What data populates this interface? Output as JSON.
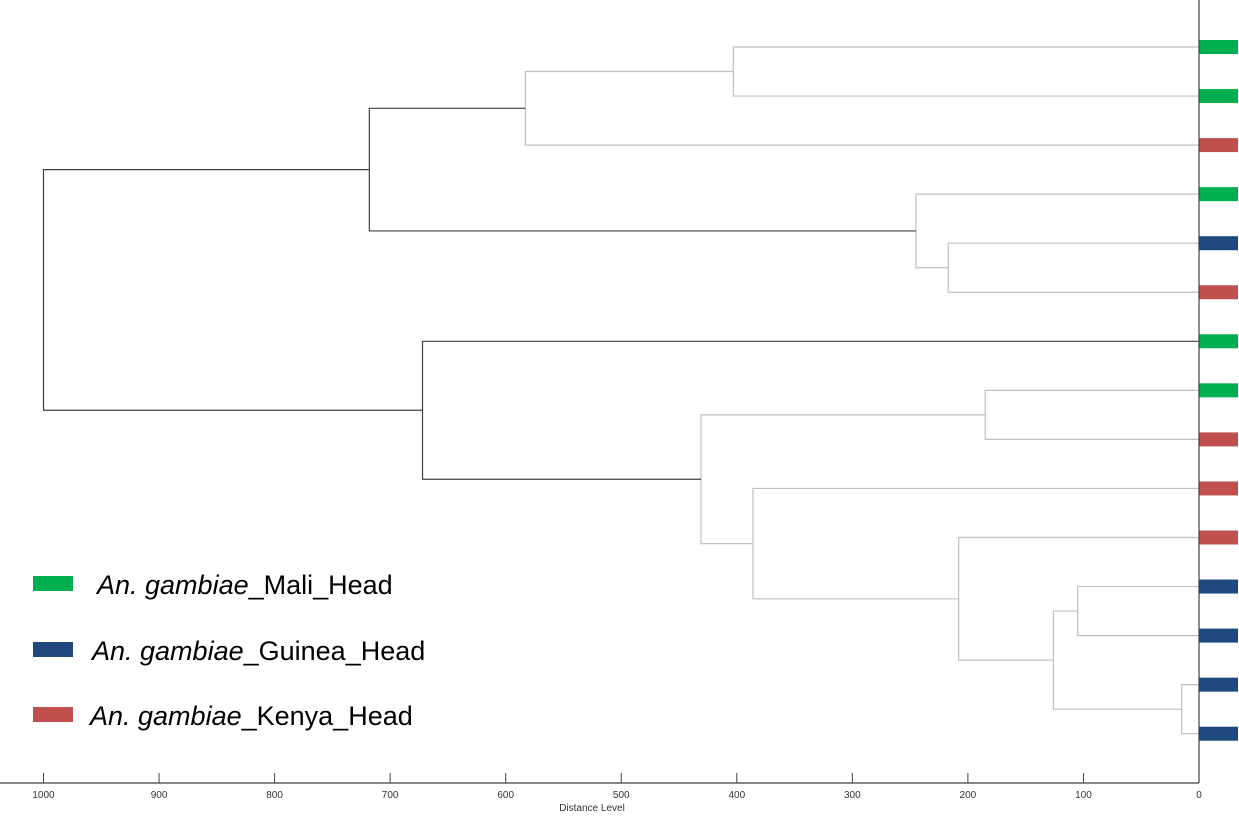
{
  "chart_data": {
    "type": "dendrogram",
    "xlabel": "Distance Level",
    "xlim": [
      1000,
      0
    ],
    "x_ticks": [
      1000,
      900,
      800,
      700,
      600,
      500,
      400,
      300,
      200,
      100,
      0
    ],
    "leaf_groups": [
      "Mali",
      "Mali",
      "Kenya",
      "Mali",
      "Guinea",
      "Kenya",
      "Mali",
      "Mali",
      "Kenya",
      "Kenya",
      "Kenya",
      "Guinea",
      "Guinea",
      "Guinea",
      "Guinea"
    ],
    "merges": [
      {
        "a": 0,
        "b": 1,
        "height": 403,
        "id": "n1"
      },
      {
        "a": "n1",
        "b": 2,
        "height": 583,
        "id": "n2"
      },
      {
        "a": 4,
        "b": 5,
        "height": 217,
        "id": "n3"
      },
      {
        "a": 3,
        "b": "n3",
        "height": 245,
        "id": "n4"
      },
      {
        "a": "n2",
        "b": "n4",
        "height": 718,
        "id": "n5"
      },
      {
        "a": 7,
        "b": 8,
        "height": 185,
        "id": "n6"
      },
      {
        "a": 11,
        "b": 12,
        "height": 105,
        "id": "n7"
      },
      {
        "a": 13,
        "b": 14,
        "height": 15,
        "id": "n8"
      },
      {
        "a": "n7",
        "b": "n8",
        "height": 126,
        "id": "n9"
      },
      {
        "a": 10,
        "b": "n9",
        "height": 208,
        "id": "n10"
      },
      {
        "a": 9,
        "b": "n10",
        "height": 386,
        "id": "n11"
      },
      {
        "a": "n6",
        "b": "n11",
        "height": 431,
        "id": "n12"
      },
      {
        "a": 6,
        "b": "n12",
        "height": 672,
        "id": "n13"
      },
      {
        "a": "n5",
        "b": "n13",
        "height": 1000,
        "id": "n14"
      }
    ],
    "highlighted_links": [
      "n14",
      "n5",
      "n13"
    ],
    "legend": [
      {
        "group": "Mali",
        "species": "An. gambiae",
        "suffix": "_Mali_Head",
        "color": "#00b050"
      },
      {
        "group": "Guinea",
        "species": "An. gambiae",
        "suffix": "_Guinea_Head",
        "color": "#1f497d"
      },
      {
        "group": "Kenya",
        "species": "An. gambiae",
        "suffix": "_Kenya_Head",
        "color": "#c0504d"
      }
    ],
    "legend_placement": "bottom-left",
    "colors": {
      "link": "#c0c0c0",
      "link_highlight": "#404040",
      "axis": "#404040"
    }
  }
}
